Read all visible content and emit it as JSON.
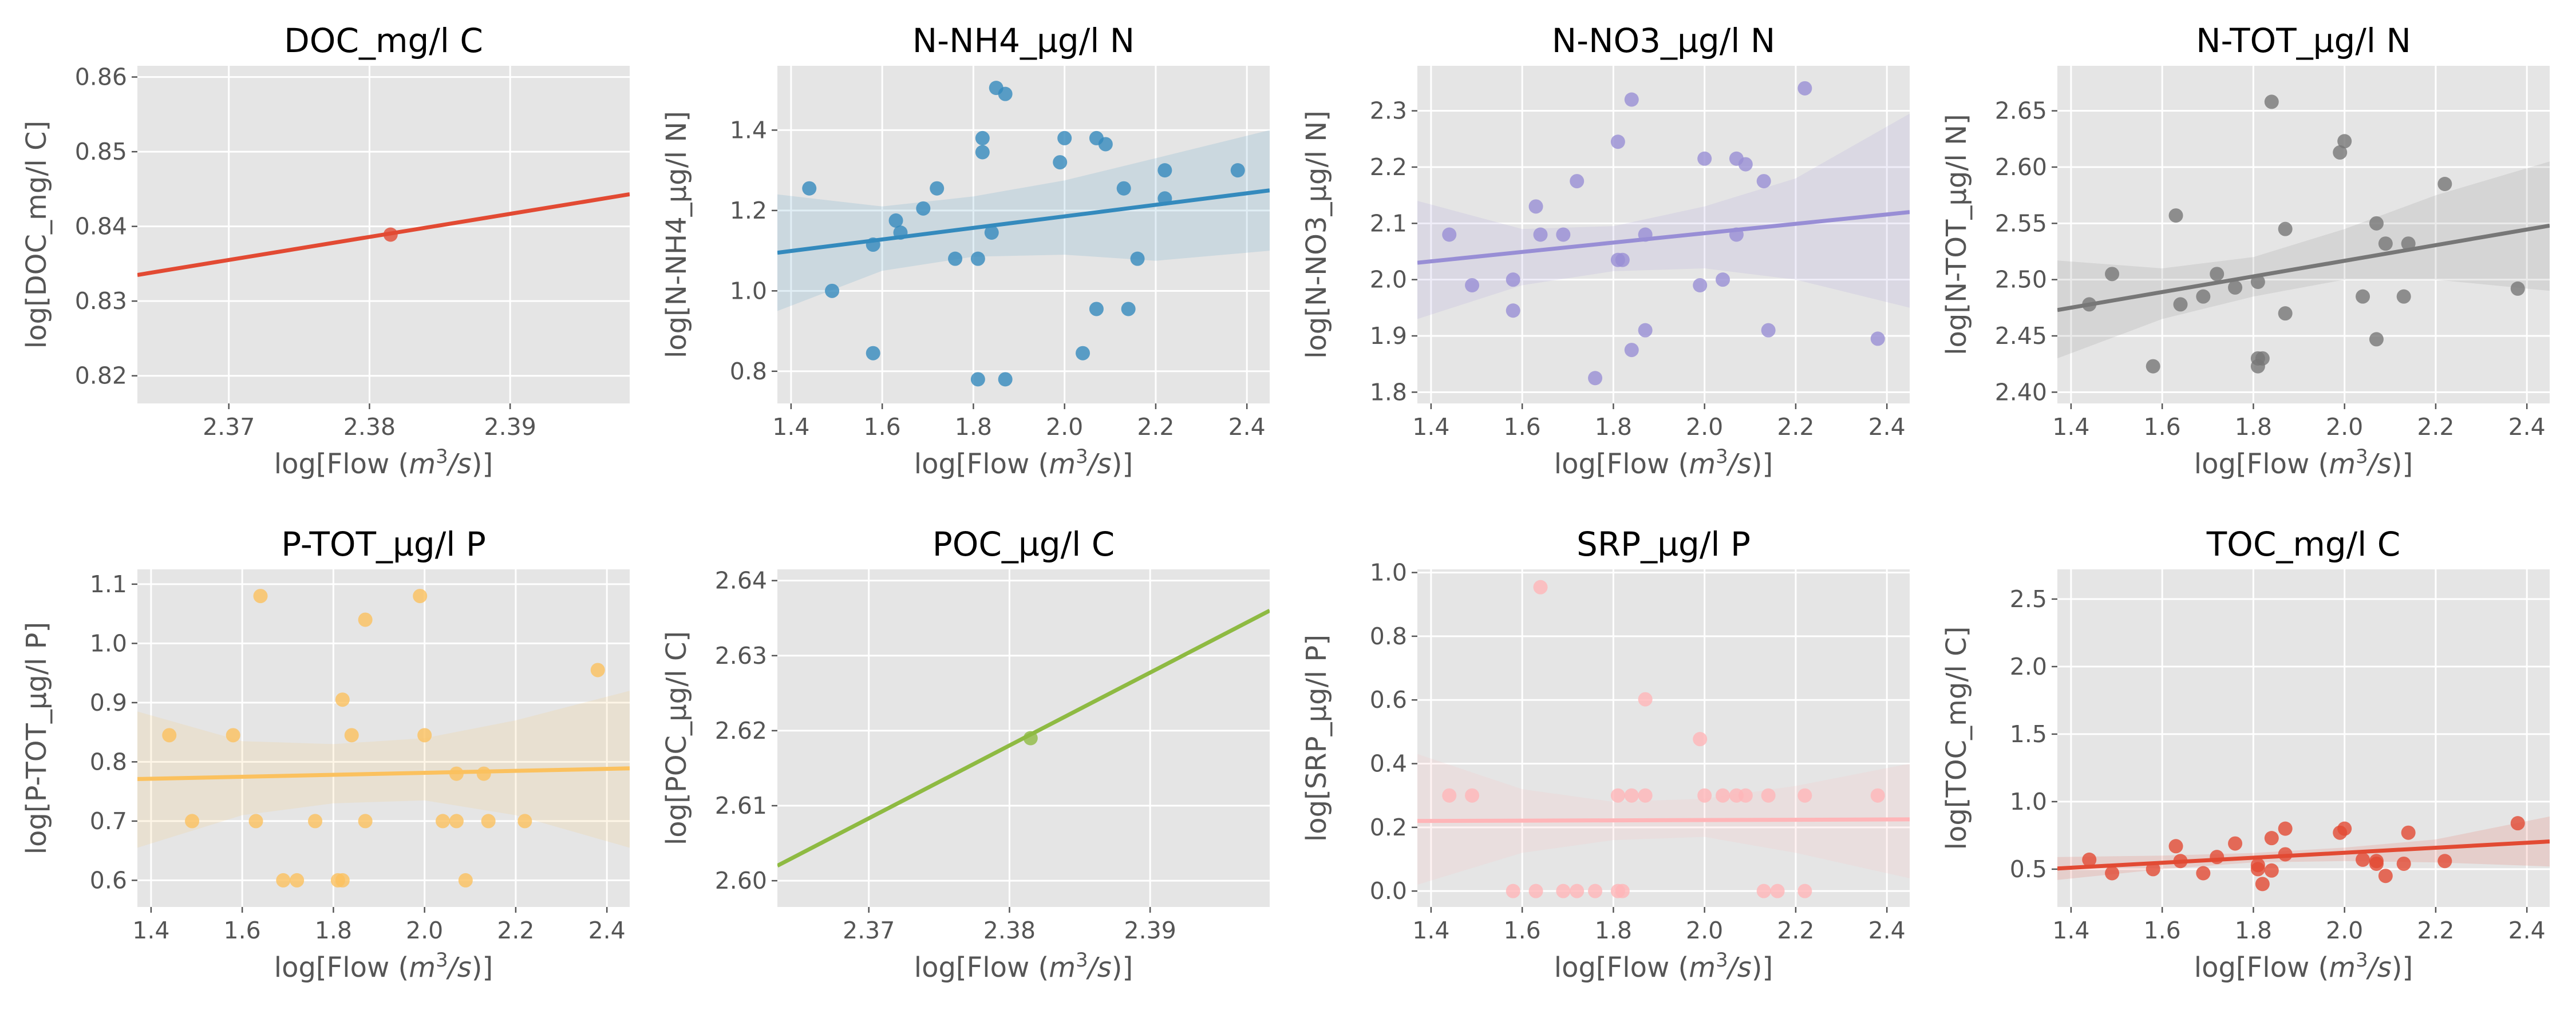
{
  "figure": {
    "background": "#ffffff",
    "panel_background": "#e5e5e5",
    "grid_color": "#ffffff"
  },
  "chart_data": [
    {
      "type": "scatter",
      "title": "DOC_mg/l C",
      "xlabel": "log[Flow ($m^3/s$)]",
      "ylabel": "log[DOC_mg/l C]",
      "color": "#e24a33",
      "xlim": [
        2.3635,
        2.3985
      ],
      "ylim": [
        0.8163,
        0.8615
      ],
      "xticks": [
        2.37,
        2.38,
        2.39
      ],
      "xtick_labels": [
        "2.37",
        "2.38",
        "2.39"
      ],
      "yticks": [
        0.82,
        0.83,
        0.84,
        0.85,
        0.86
      ],
      "ytick_labels": [
        "0.82",
        "0.83",
        "0.84",
        "0.85",
        "0.86"
      ],
      "points": [
        [
          2.3815,
          0.8389
        ]
      ],
      "regression": {
        "x": [
          2.3635,
          2.3985
        ],
        "y": [
          0.8335,
          0.8443
        ]
      },
      "confidence_band": null
    },
    {
      "type": "scatter",
      "title": "N-NH4_µg/l N",
      "xlabel": "log[Flow ($m^3/s$)]",
      "ylabel": "log[N-NH4_µg/l N]",
      "color": "#348abd",
      "xlim": [
        1.37,
        2.45
      ],
      "ylim": [
        0.72,
        1.56
      ],
      "xticks": [
        1.4,
        1.6,
        1.8,
        2.0,
        2.2,
        2.4
      ],
      "xtick_labels": [
        "1.4",
        "1.6",
        "1.8",
        "2.0",
        "2.2",
        "2.4"
      ],
      "yticks": [
        0.8,
        1.0,
        1.2,
        1.4
      ],
      "ytick_labels": [
        "0.8",
        "1.0",
        "1.2",
        "1.4"
      ],
      "points": [
        [
          1.44,
          1.255
        ],
        [
          1.49,
          1.0
        ],
        [
          1.58,
          0.845
        ],
        [
          1.58,
          1.115
        ],
        [
          1.63,
          1.175
        ],
        [
          1.64,
          1.145
        ],
        [
          1.69,
          1.205
        ],
        [
          1.72,
          1.255
        ],
        [
          1.76,
          1.08
        ],
        [
          1.81,
          0.78
        ],
        [
          1.81,
          1.08
        ],
        [
          1.82,
          1.345
        ],
        [
          1.82,
          1.38
        ],
        [
          1.84,
          1.145
        ],
        [
          1.85,
          1.505
        ],
        [
          1.87,
          1.49
        ],
        [
          1.87,
          0.78
        ],
        [
          1.99,
          1.32
        ],
        [
          2.0,
          1.38
        ],
        [
          2.04,
          0.845
        ],
        [
          2.07,
          1.38
        ],
        [
          2.07,
          0.955
        ],
        [
          2.09,
          1.365
        ],
        [
          2.13,
          1.255
        ],
        [
          2.14,
          0.955
        ],
        [
          2.16,
          1.08
        ],
        [
          2.22,
          1.3
        ],
        [
          2.22,
          1.23
        ],
        [
          2.38,
          1.3
        ]
      ],
      "regression": {
        "x": [
          1.37,
          2.45
        ],
        "y": [
          1.095,
          1.25
        ]
      },
      "confidence_band": {
        "x": [
          1.37,
          1.6,
          1.8,
          2.0,
          2.2,
          2.45
        ],
        "lower": [
          0.95,
          1.05,
          1.085,
          1.09,
          1.075,
          1.1
        ],
        "upper": [
          1.24,
          1.21,
          1.235,
          1.275,
          1.33,
          1.4
        ]
      }
    },
    {
      "type": "scatter",
      "title": "N-NO3_µg/l N",
      "xlabel": "log[Flow ($m^3/s$)]",
      "ylabel": "log[N-NO3_µg/l N]",
      "color": "#988ed5",
      "xlim": [
        1.37,
        2.45
      ],
      "ylim": [
        1.78,
        2.38
      ],
      "xticks": [
        1.4,
        1.6,
        1.8,
        2.0,
        2.2,
        2.4
      ],
      "xtick_labels": [
        "1.4",
        "1.6",
        "1.8",
        "2.0",
        "2.2",
        "2.4"
      ],
      "yticks": [
        1.8,
        1.9,
        2.0,
        2.1,
        2.2,
        2.3
      ],
      "ytick_labels": [
        "1.8",
        "1.9",
        "2.0",
        "2.1",
        "2.2",
        "2.3"
      ],
      "points": [
        [
          1.44,
          2.08
        ],
        [
          1.49,
          1.99
        ],
        [
          1.58,
          2.0
        ],
        [
          1.58,
          1.945
        ],
        [
          1.63,
          2.13
        ],
        [
          1.64,
          2.08
        ],
        [
          1.69,
          2.08
        ],
        [
          1.72,
          2.175
        ],
        [
          1.76,
          1.825
        ],
        [
          1.81,
          2.035
        ],
        [
          1.81,
          2.245
        ],
        [
          1.82,
          2.035
        ],
        [
          1.84,
          1.875
        ],
        [
          1.84,
          2.32
        ],
        [
          1.87,
          1.91
        ],
        [
          1.87,
          2.08
        ],
        [
          1.99,
          1.99
        ],
        [
          2.0,
          2.215
        ],
        [
          2.04,
          2.0
        ],
        [
          2.07,
          2.08
        ],
        [
          2.07,
          2.215
        ],
        [
          2.09,
          2.205
        ],
        [
          2.13,
          2.175
        ],
        [
          2.14,
          1.91
        ],
        [
          2.22,
          2.34
        ],
        [
          2.38,
          1.895
        ]
      ],
      "regression": {
        "x": [
          1.37,
          2.45
        ],
        "y": [
          2.03,
          2.12
        ]
      },
      "confidence_band": {
        "x": [
          1.37,
          1.6,
          1.8,
          2.0,
          2.2,
          2.45
        ],
        "lower": [
          1.93,
          1.99,
          2.015,
          2.02,
          2.0,
          1.95
        ],
        "upper": [
          2.14,
          2.09,
          2.095,
          2.13,
          2.18,
          2.295
        ]
      }
    },
    {
      "type": "scatter",
      "title": "N-TOT_µg/l N",
      "xlabel": "log[Flow ($m^3/s$)]",
      "ylabel": "log[N-TOT_µg/l N]",
      "color": "#777777",
      "xlim": [
        1.37,
        2.45
      ],
      "ylim": [
        2.39,
        2.69
      ],
      "xticks": [
        1.4,
        1.6,
        1.8,
        2.0,
        2.2,
        2.4
      ],
      "xtick_labels": [
        "1.4",
        "1.6",
        "1.8",
        "2.0",
        "2.2",
        "2.4"
      ],
      "yticks": [
        2.4,
        2.45,
        2.5,
        2.55,
        2.6,
        2.65
      ],
      "ytick_labels": [
        "2.40",
        "2.45",
        "2.50",
        "2.55",
        "2.60",
        "2.65"
      ],
      "points": [
        [
          1.44,
          2.478
        ],
        [
          1.49,
          2.505
        ],
        [
          1.58,
          2.423
        ],
        [
          1.63,
          2.557
        ],
        [
          1.64,
          2.478
        ],
        [
          1.69,
          2.485
        ],
        [
          1.72,
          2.505
        ],
        [
          1.76,
          2.493
        ],
        [
          1.81,
          2.423
        ],
        [
          1.81,
          2.43
        ],
        [
          1.81,
          2.498
        ],
        [
          1.82,
          2.43
        ],
        [
          1.84,
          2.658
        ],
        [
          1.87,
          2.47
        ],
        [
          1.87,
          2.545
        ],
        [
          1.99,
          2.613
        ],
        [
          2.0,
          2.623
        ],
        [
          2.04,
          2.485
        ],
        [
          2.07,
          2.447
        ],
        [
          2.07,
          2.55
        ],
        [
          2.09,
          2.532
        ],
        [
          2.13,
          2.485
        ],
        [
          2.14,
          2.532
        ],
        [
          2.22,
          2.585
        ],
        [
          2.38,
          2.492
        ]
      ],
      "regression": {
        "x": [
          1.37,
          2.45
        ],
        "y": [
          2.473,
          2.548
        ]
      },
      "confidence_band": {
        "x": [
          1.37,
          1.6,
          1.8,
          2.0,
          2.2,
          2.45
        ],
        "lower": [
          2.43,
          2.465,
          2.485,
          2.5,
          2.5,
          2.49
        ],
        "upper": [
          2.517,
          2.51,
          2.52,
          2.545,
          2.575,
          2.605
        ]
      }
    },
    {
      "type": "scatter",
      "title": "P-TOT_µg/l P",
      "xlabel": "log[Flow ($m^3/s$)]",
      "ylabel": "log[P-TOT_µg/l P]",
      "color": "#fbc15e",
      "xlim": [
        1.37,
        2.45
      ],
      "ylim": [
        0.555,
        1.125
      ],
      "xticks": [
        1.4,
        1.6,
        1.8,
        2.0,
        2.2,
        2.4
      ],
      "xtick_labels": [
        "1.4",
        "1.6",
        "1.8",
        "2.0",
        "2.2",
        "2.4"
      ],
      "yticks": [
        0.6,
        0.7,
        0.8,
        0.9,
        1.0,
        1.1
      ],
      "ytick_labels": [
        "0.6",
        "0.7",
        "0.8",
        "0.9",
        "1.0",
        "1.1"
      ],
      "points": [
        [
          1.44,
          0.845
        ],
        [
          1.49,
          0.7
        ],
        [
          1.58,
          0.845
        ],
        [
          1.63,
          0.7
        ],
        [
          1.64,
          1.08
        ],
        [
          1.69,
          0.6
        ],
        [
          1.72,
          0.6
        ],
        [
          1.76,
          0.7
        ],
        [
          1.81,
          0.6
        ],
        [
          1.82,
          0.6
        ],
        [
          1.82,
          0.905
        ],
        [
          1.84,
          0.845
        ],
        [
          1.87,
          1.04
        ],
        [
          1.87,
          0.7
        ],
        [
          1.99,
          1.08
        ],
        [
          2.0,
          0.845
        ],
        [
          2.04,
          0.7
        ],
        [
          2.07,
          0.78
        ],
        [
          2.07,
          0.7
        ],
        [
          2.09,
          0.6
        ],
        [
          2.13,
          0.78
        ],
        [
          2.14,
          0.7
        ],
        [
          2.22,
          0.7
        ],
        [
          2.38,
          0.955
        ]
      ],
      "regression": {
        "x": [
          1.37,
          2.45
        ],
        "y": [
          0.771,
          0.789
        ]
      },
      "confidence_band": {
        "x": [
          1.37,
          1.6,
          1.8,
          2.0,
          2.2,
          2.45
        ],
        "lower": [
          0.655,
          0.71,
          0.73,
          0.735,
          0.71,
          0.655
        ],
        "upper": [
          0.885,
          0.835,
          0.83,
          0.84,
          0.87,
          0.92
        ]
      }
    },
    {
      "type": "scatter",
      "title": "POC_µg/l C",
      "xlabel": "log[Flow ($m^3/s$)]",
      "ylabel": "log[POC_µg/l C]",
      "color": "#8eba42",
      "xlim": [
        2.3635,
        2.3985
      ],
      "ylim": [
        2.5965,
        2.6415
      ],
      "xticks": [
        2.37,
        2.38,
        2.39
      ],
      "xtick_labels": [
        "2.37",
        "2.38",
        "2.39"
      ],
      "yticks": [
        2.6,
        2.61,
        2.62,
        2.63,
        2.64
      ],
      "ytick_labels": [
        "2.60",
        "2.61",
        "2.62",
        "2.63",
        "2.64"
      ],
      "points": [
        [
          2.3815,
          2.619
        ]
      ],
      "regression": {
        "x": [
          2.3635,
          2.3985
        ],
        "y": [
          2.602,
          2.636
        ]
      },
      "confidence_band": null
    },
    {
      "type": "scatter",
      "title": "SRP_µg/l P",
      "xlabel": "log[Flow ($m^3/s$)]",
      "ylabel": "log[SRP_µg/l P]",
      "color": "#ffb5b8",
      "xlim": [
        1.37,
        2.45
      ],
      "ylim": [
        -0.05,
        1.01
      ],
      "xticks": [
        1.4,
        1.6,
        1.8,
        2.0,
        2.2,
        2.4
      ],
      "xtick_labels": [
        "1.4",
        "1.6",
        "1.8",
        "2.0",
        "2.2",
        "2.4"
      ],
      "yticks": [
        0.0,
        0.2,
        0.4,
        0.6,
        0.8,
        1.0
      ],
      "ytick_labels": [
        "0.0",
        "0.2",
        "0.4",
        "0.6",
        "0.8",
        "1.0"
      ],
      "points": [
        [
          1.44,
          0.3
        ],
        [
          1.49,
          0.3
        ],
        [
          1.58,
          0.0
        ],
        [
          1.63,
          0.0
        ],
        [
          1.64,
          0.954
        ],
        [
          1.69,
          0.0
        ],
        [
          1.72,
          0.0
        ],
        [
          1.76,
          0.0
        ],
        [
          1.81,
          0.0
        ],
        [
          1.81,
          0.3
        ],
        [
          1.82,
          0.0
        ],
        [
          1.84,
          0.3
        ],
        [
          1.87,
          0.602
        ],
        [
          1.87,
          0.3
        ],
        [
          1.99,
          0.477
        ],
        [
          2.0,
          0.3
        ],
        [
          2.04,
          0.3
        ],
        [
          2.07,
          0.3
        ],
        [
          2.09,
          0.3
        ],
        [
          2.13,
          0.0
        ],
        [
          2.14,
          0.3
        ],
        [
          2.16,
          0.0
        ],
        [
          2.22,
          0.0
        ],
        [
          2.22,
          0.3
        ],
        [
          2.38,
          0.3
        ]
      ],
      "regression": {
        "x": [
          1.37,
          2.45
        ],
        "y": [
          0.22,
          0.225
        ]
      },
      "confidence_band": {
        "x": [
          1.37,
          1.6,
          1.8,
          2.0,
          2.2,
          2.45
        ],
        "lower": [
          0.02,
          0.12,
          0.16,
          0.17,
          0.12,
          0.04
        ],
        "upper": [
          0.43,
          0.32,
          0.28,
          0.29,
          0.33,
          0.4
        ]
      }
    },
    {
      "type": "scatter",
      "title": "TOC_mg/l C",
      "xlabel": "log[Flow ($m^3/s$)]",
      "ylabel": "log[TOC_mg/l C]",
      "color": "#e24a33",
      "xlim": [
        1.37,
        2.45
      ],
      "ylim": [
        0.22,
        2.72
      ],
      "xticks": [
        1.4,
        1.6,
        1.8,
        2.0,
        2.2,
        2.4
      ],
      "xtick_labels": [
        "1.4",
        "1.6",
        "1.8",
        "2.0",
        "2.2",
        "2.4"
      ],
      "yticks": [
        0.5,
        1.0,
        1.5,
        2.0,
        2.5
      ],
      "ytick_labels": [
        "0.5",
        "1.0",
        "1.5",
        "2.0",
        "2.5"
      ],
      "points": [
        [
          1.44,
          0.57
        ],
        [
          1.49,
          0.47
        ],
        [
          1.58,
          0.5
        ],
        [
          1.63,
          0.67
        ],
        [
          1.64,
          0.56
        ],
        [
          1.69,
          0.47
        ],
        [
          1.72,
          0.59
        ],
        [
          1.76,
          0.69
        ],
        [
          1.81,
          0.53
        ],
        [
          1.81,
          0.5
        ],
        [
          1.82,
          0.39
        ],
        [
          1.84,
          0.49
        ],
        [
          1.84,
          0.73
        ],
        [
          1.87,
          0.61
        ],
        [
          1.87,
          0.8
        ],
        [
          1.99,
          0.77
        ],
        [
          2.0,
          0.8
        ],
        [
          2.04,
          0.57
        ],
        [
          2.07,
          0.56
        ],
        [
          2.07,
          0.54
        ],
        [
          2.09,
          0.45
        ],
        [
          2.13,
          0.54
        ],
        [
          2.14,
          0.77
        ],
        [
          2.22,
          0.56
        ],
        [
          2.38,
          0.84
        ]
      ],
      "regression": {
        "x": [
          1.37,
          2.45
        ],
        "y": [
          0.505,
          0.705
        ]
      },
      "confidence_band": {
        "x": [
          1.37,
          1.6,
          1.8,
          2.0,
          2.2,
          2.45
        ],
        "lower": [
          0.42,
          0.5,
          0.55,
          0.56,
          0.55,
          0.52
        ],
        "upper": [
          0.59,
          0.6,
          0.62,
          0.66,
          0.72,
          0.89
        ]
      }
    }
  ]
}
